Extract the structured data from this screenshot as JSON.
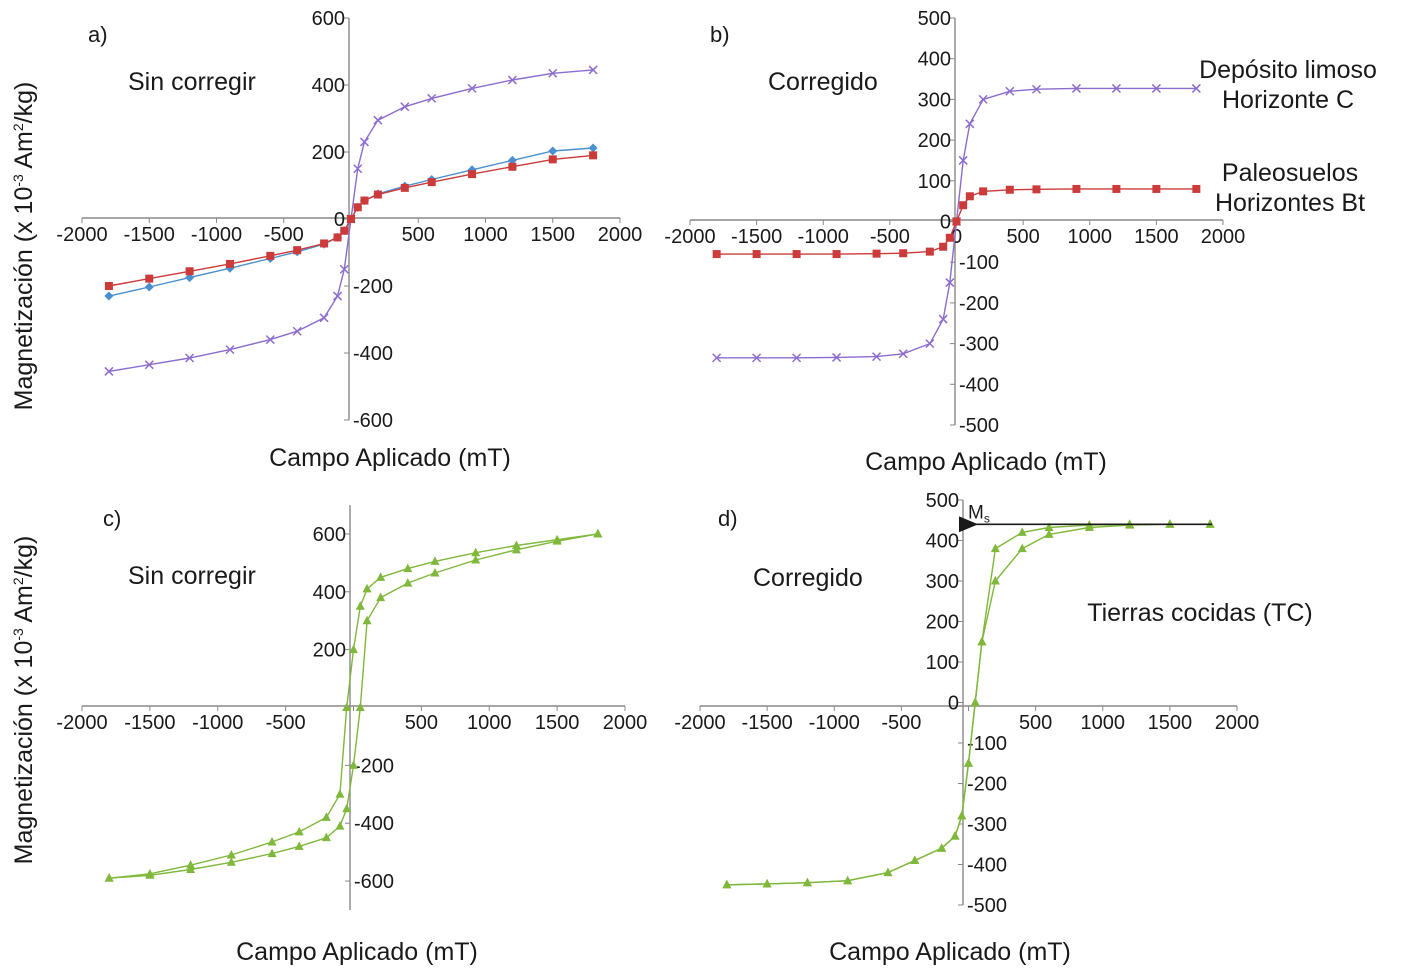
{
  "figure": {
    "y_label": "Magnetización (x 10-3 Am2/kg)",
    "y_label_parts": {
      "pre": "Magnetización (x 10",
      "exp": "-3",
      "mid": " Am",
      "exp2": "2",
      "post": "/kg)"
    }
  },
  "chart_data": [
    {
      "type": "line",
      "panel": "a)",
      "note": "Sin corregir",
      "xlabel": "Campo Aplicado (mT)",
      "xlim": [
        -2000,
        2000
      ],
      "ylim": [
        -600,
        600
      ],
      "xticks": [
        -2000,
        -1500,
        -1000,
        -500,
        0,
        500,
        1000,
        1500,
        2000
      ],
      "yticks": [
        -600,
        -400,
        -200,
        0,
        200,
        400,
        600
      ],
      "xtick_labels": [
        "-2000",
        "-1500",
        "-1000",
        "-500",
        "500",
        "1000",
        "1500",
        "2000"
      ],
      "ytick_labels": [
        "600",
        "400",
        "200",
        "0",
        "-200",
        "-400",
        "-600"
      ],
      "series": [
        {
          "color": "#8c6ccf",
          "marker": "x",
          "x": [
            -1800,
            -1500,
            -1200,
            -900,
            -600,
            -400,
            -200,
            -100,
            -50,
            0,
            50,
            100,
            200,
            400,
            600,
            900,
            1200,
            1500,
            1800
          ],
          "y": [
            -455,
            -435,
            -415,
            -390,
            -360,
            -335,
            -295,
            -230,
            -150,
            0,
            150,
            230,
            295,
            335,
            360,
            390,
            415,
            435,
            445
          ]
        },
        {
          "color": "#4a90d0",
          "marker": "diamond",
          "x": [
            -1800,
            -1500,
            -1200,
            -900,
            -600,
            -400,
            -200,
            -100,
            -50,
            0,
            50,
            100,
            200,
            400,
            600,
            900,
            1200,
            1500,
            1800
          ],
          "y": [
            -230,
            -203,
            -175,
            -147,
            -118,
            -98,
            -75,
            -55,
            -35,
            0,
            35,
            55,
            75,
            98,
            118,
            147,
            175,
            203,
            212
          ]
        },
        {
          "color": "#cc3a3a",
          "marker": "square",
          "x": [
            -1800,
            -1500,
            -1200,
            -900,
            -600,
            -400,
            -200,
            -100,
            -50,
            0,
            50,
            100,
            200,
            400,
            600,
            900,
            1200,
            1500,
            1800
          ],
          "y": [
            -200,
            -178,
            -156,
            -134,
            -110,
            -93,
            -73,
            -55,
            -35,
            0,
            35,
            55,
            73,
            93,
            110,
            134,
            156,
            178,
            190
          ]
        }
      ]
    },
    {
      "type": "line",
      "panel": "b)",
      "note": "Corregido",
      "xlabel": "Campo Aplicado (mT)",
      "xlim": [
        -2000,
        2000
      ],
      "ylim": [
        -500,
        500
      ],
      "xticks": [
        -2000,
        -1500,
        -1000,
        -500,
        0,
        500,
        1000,
        1500,
        2000
      ],
      "yticks": [
        -500,
        -400,
        -300,
        -200,
        -100,
        0,
        100,
        200,
        300,
        400,
        500
      ],
      "xtick_labels": [
        "-2000",
        "-1500",
        "-1000",
        "-500",
        "0",
        "500",
        "1000",
        "1500",
        "2000"
      ],
      "ytick_labels": [
        "500",
        "400",
        "300",
        "200",
        "100",
        "0",
        "-100",
        "-200",
        "-300",
        "-400",
        "-500"
      ],
      "legend": [
        {
          "lines": [
            "Depósito limoso",
            "Horizonte C"
          ]
        },
        {
          "lines": [
            "Paleosuelos",
            "Horizontes Bt"
          ]
        }
      ],
      "series": [
        {
          "name": "Depósito limoso Horizonte C",
          "color": "#8c6ccf",
          "marker": "x",
          "x": [
            -1800,
            -1500,
            -1200,
            -900,
            -600,
            -400,
            -200,
            -100,
            -50,
            0,
            50,
            100,
            200,
            400,
            600,
            900,
            1200,
            1500,
            1800
          ],
          "y": [
            -335,
            -335,
            -335,
            -334,
            -332,
            -325,
            -300,
            -240,
            -150,
            0,
            150,
            240,
            300,
            320,
            325,
            327,
            327,
            327,
            327
          ]
        },
        {
          "name": "Paleosuelos Horizontes Bt",
          "color": "#cc3a3a",
          "marker": "square",
          "x": [
            -1800,
            -1500,
            -1200,
            -900,
            -600,
            -400,
            -200,
            -100,
            -50,
            0,
            50,
            100,
            200,
            400,
            600,
            900,
            1200,
            1500,
            1800
          ],
          "y": [
            -80,
            -80,
            -80,
            -80,
            -79,
            -78,
            -74,
            -62,
            -40,
            0,
            40,
            62,
            74,
            78,
            79,
            80,
            80,
            80,
            80
          ]
        }
      ]
    },
    {
      "type": "line",
      "panel": "c)",
      "note": "Sin corregir",
      "xlabel": "Campo Aplicado (mT)",
      "xlim": [
        -2000,
        2000
      ],
      "ylim": [
        -700,
        700
      ],
      "xticks": [
        -2000,
        -1500,
        -1000,
        -500,
        0,
        500,
        1000,
        1500,
        2000
      ],
      "yticks": [
        -600,
        -400,
        -200,
        200,
        400,
        600
      ],
      "xtick_labels": [
        "-2000",
        "-1500",
        "-1000",
        "-500",
        "500",
        "1000",
        "1500",
        "2000"
      ],
      "ytick_labels": [
        "600",
        "400",
        "200",
        "-200",
        "-400",
        "-600"
      ],
      "series": [
        {
          "color": "#7fb83a",
          "marker": "triangle",
          "x": [
            1800,
            1500,
            1200,
            900,
            600,
            400,
            200,
            100,
            50,
            0,
            -50,
            -100,
            -200,
            -400,
            -600,
            -900,
            -1200,
            -1500,
            -1800
          ],
          "y": [
            600,
            580,
            560,
            535,
            505,
            480,
            450,
            410,
            350,
            200,
            0,
            -300,
            -380,
            -430,
            -465,
            -510,
            -545,
            -575,
            -590
          ]
        },
        {
          "color": "#7fb83a",
          "marker": "triangle",
          "x": [
            -1800,
            -1500,
            -1200,
            -900,
            -600,
            -400,
            -200,
            -100,
            -50,
            0,
            50,
            100,
            200,
            400,
            600,
            900,
            1200,
            1500,
            1800
          ],
          "y": [
            -590,
            -580,
            -560,
            -535,
            -505,
            -480,
            -450,
            -410,
            -350,
            -200,
            0,
            300,
            380,
            430,
            465,
            510,
            545,
            575,
            600
          ]
        }
      ]
    },
    {
      "type": "line",
      "panel": "d)",
      "note": "Corregido",
      "xlabel": "Campo Aplicado (mT)",
      "xlim": [
        -2000,
        2000
      ],
      "ylim": [
        -500,
        500
      ],
      "xticks": [
        -2000,
        -1500,
        -1000,
        -500,
        0,
        500,
        1000,
        1500,
        2000
      ],
      "yticks": [
        -500,
        -400,
        -300,
        -200,
        -100,
        0,
        100,
        200,
        300,
        400,
        500
      ],
      "xtick_labels": [
        "-2000",
        "-1500",
        "-1000",
        "-500",
        "500",
        "1000",
        "1500",
        "2000"
      ],
      "ytick_labels": [
        "500",
        "400",
        "300",
        "200",
        "100",
        "0",
        "-100",
        "-200",
        "-300",
        "-400",
        "-500"
      ],
      "legend": [
        {
          "lines": [
            "Tierras cocidas (TC)"
          ]
        }
      ],
      "annotation": {
        "text": "M",
        "sub": "s",
        "y": 440
      },
      "series": [
        {
          "color": "#7fb83a",
          "marker": "triangle",
          "x": [
            1800,
            1500,
            1200,
            900,
            600,
            400,
            200,
            100,
            50,
            0,
            -50,
            -100,
            -200,
            -400,
            -600,
            -900,
            -1200,
            -1500,
            -1800
          ],
          "y": [
            440,
            440,
            438,
            432,
            415,
            380,
            300,
            150,
            0,
            -150,
            -280,
            -330,
            -360,
            -390,
            -420,
            -440,
            -445,
            -448,
            -450
          ]
        },
        {
          "color": "#7fb83a",
          "marker": "triangle",
          "x": [
            -1800,
            -1500,
            -1200,
            -900,
            -600,
            -400,
            -200,
            -100,
            -50,
            0,
            50,
            100,
            200,
            400,
            600,
            900,
            1200,
            1500,
            1800
          ],
          "y": [
            -450,
            -448,
            -445,
            -440,
            -420,
            -390,
            -360,
            -330,
            -280,
            -150,
            0,
            150,
            380,
            420,
            432,
            438,
            440,
            440,
            440
          ]
        }
      ]
    }
  ]
}
